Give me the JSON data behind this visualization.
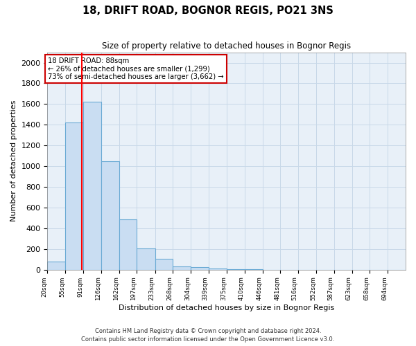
{
  "title": "18, DRIFT ROAD, BOGNOR REGIS, PO21 3NS",
  "subtitle": "Size of property relative to detached houses in Bognor Regis",
  "xlabel": "Distribution of detached houses by size in Bognor Regis",
  "ylabel": "Number of detached properties",
  "footnote1": "Contains HM Land Registry data © Crown copyright and database right 2024.",
  "footnote2": "Contains public sector information licensed under the Open Government Licence v3.0.",
  "bin_edges": [
    20,
    55,
    91,
    126,
    162,
    197,
    233,
    268,
    304,
    339,
    375,
    410,
    446,
    481,
    516,
    552,
    587,
    623,
    658,
    694,
    729
  ],
  "bar_heights": [
    80,
    1420,
    1620,
    1050,
    490,
    205,
    105,
    35,
    25,
    10,
    5,
    3,
    2,
    1,
    1,
    0,
    0,
    0,
    0,
    0
  ],
  "bar_color": "#c9ddf2",
  "bar_edge_color": "#6aaad4",
  "red_line_x": 88,
  "ylim": [
    0,
    2100
  ],
  "yticks": [
    0,
    200,
    400,
    600,
    800,
    1000,
    1200,
    1400,
    1600,
    1800,
    2000
  ],
  "annotation_title": "18 DRIFT ROAD: 88sqm",
  "annotation_line1": "← 26% of detached houses are smaller (1,299)",
  "annotation_line2": "73% of semi-detached houses are larger (3,662) →",
  "annotation_box_color": "#ffffff",
  "annotation_box_edge": "#cc0000",
  "grid_color": "#c8d8e8",
  "bg_color": "#e8f0f8"
}
